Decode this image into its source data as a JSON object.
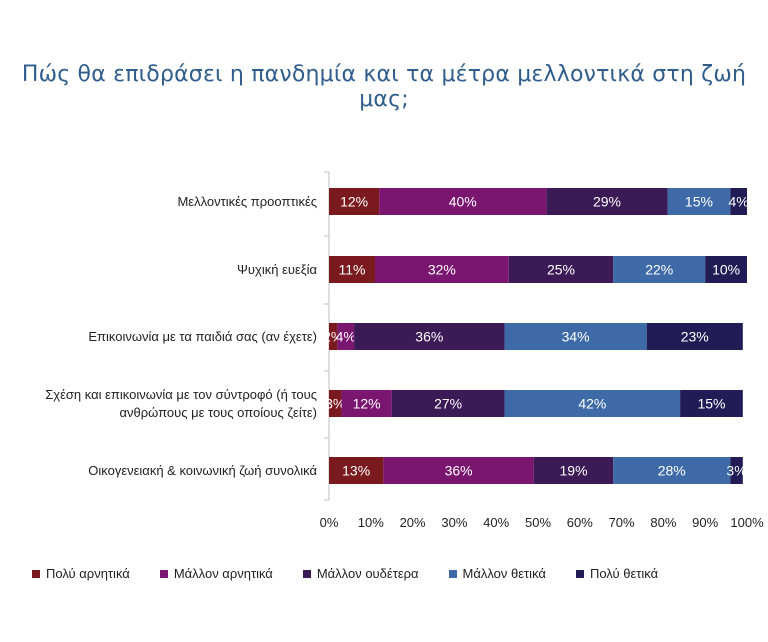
{
  "chart_data": {
    "type": "bar",
    "orientation": "horizontal-stacked-100",
    "title": "Πώς θα επιδράσει η πανδημία και τα μέτρα μελλοντικά στη ζωή μας;",
    "categories": [
      "Μελλοντικές προοπτικές",
      "Ψυχική ευεξία",
      "Επικοινωνία με τα παιδιά σας (αν έχετε)",
      "Σχέση και επικοινωνία με τον σύντροφό (ή τους ανθρώπους με τους οποίους ζείτε)",
      "Οικογενειακή & κοινωνική ζωή συνολικά"
    ],
    "category_lines": [
      [
        "Μελλοντικές προοπτικές"
      ],
      [
        "Ψυχική ευεξία"
      ],
      [
        "Επικοινωνία με τα παιδιά σας (αν έχετε)"
      ],
      [
        "Σχέση και επικοινωνία με τον σύντροφό (ή τους",
        "ανθρώπους με τους οποίους ζείτε)"
      ],
      [
        "Οικογενειακή & κοινωνική ζωή συνολικά"
      ]
    ],
    "series": [
      {
        "name": "Πολύ αρνητικά",
        "color": "#7a1a1f",
        "values": [
          12,
          11,
          2,
          3,
          13
        ]
      },
      {
        "name": "Μάλλον αρνητικά",
        "color": "#7b1670",
        "values": [
          40,
          32,
          4,
          12,
          36
        ]
      },
      {
        "name": "Μάλλον ουδέτερα",
        "color": "#3b1a55",
        "values": [
          29,
          25,
          36,
          27,
          19
        ]
      },
      {
        "name": "Μάλλον θετικά",
        "color": "#3e6aa8",
        "values": [
          15,
          22,
          34,
          42,
          28
        ]
      },
      {
        "name": "Πολύ θετικά",
        "color": "#211c55",
        "values": [
          4,
          10,
          23,
          15,
          3
        ]
      }
    ],
    "xlim": [
      0,
      100
    ],
    "xticks": [
      "0%",
      "10%",
      "20%",
      "30%",
      "40%",
      "50%",
      "60%",
      "70%",
      "80%",
      "90%",
      "100%"
    ],
    "value_suffix": "%",
    "grid": false,
    "legend_position": "bottom"
  }
}
